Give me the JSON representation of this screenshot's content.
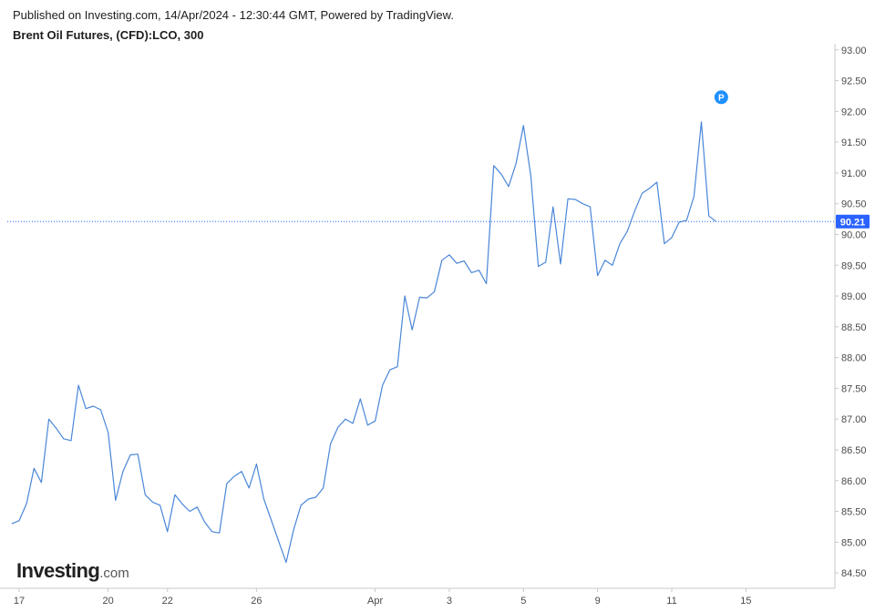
{
  "header": {
    "published": "Published on Investing.com, 14/Apr/2024 - 12:30:44 GMT, Powered by TradingView.",
    "instrument": "Brent Oil Futures, (CFD):LCO, 300"
  },
  "logo": {
    "brand": "Investing",
    "tld": ".com"
  },
  "colors": {
    "line": "#4a86d8",
    "last_price_line": "#2962ff",
    "last_price_badge": "#2962ff",
    "marker": "#1e90ff",
    "axis": "#c8c8c8"
  },
  "chart_data": {
    "type": "line",
    "title": "Brent Oil Futures, (CFD):LCO, 300",
    "xlabel": "",
    "ylabel": "",
    "grid": false,
    "ylim": [
      84.25,
      93.1
    ],
    "xlim": [
      -0.4,
      27.5
    ],
    "y_ticks": [
      "84.50",
      "85.00",
      "85.50",
      "86.00",
      "86.50",
      "87.00",
      "87.50",
      "88.00",
      "88.50",
      "89.00",
      "89.50",
      "90.00",
      "90.50",
      "91.00",
      "91.50",
      "92.00",
      "92.50",
      "93.00"
    ],
    "x_ticks": [
      {
        "t": 0,
        "label": "17"
      },
      {
        "t": 3,
        "label": "20"
      },
      {
        "t": 5,
        "label": "22"
      },
      {
        "t": 8,
        "label": "26"
      },
      {
        "t": 12,
        "label": "Apr"
      },
      {
        "t": 14.5,
        "label": "3"
      },
      {
        "t": 17,
        "label": "5"
      },
      {
        "t": 19.5,
        "label": "9"
      },
      {
        "t": 22,
        "label": "11"
      },
      {
        "t": 24.5,
        "label": "15"
      }
    ],
    "last_price": 90.21,
    "marker": {
      "t": 23.67,
      "y": 92.23,
      "label": "P"
    },
    "series": [
      {
        "points": [
          [
            -0.25,
            85.3
          ],
          [
            0.0,
            85.35
          ],
          [
            0.25,
            85.63
          ],
          [
            0.5,
            86.2
          ],
          [
            0.75,
            85.97
          ],
          [
            1.0,
            87.0
          ],
          [
            1.25,
            86.85
          ],
          [
            1.5,
            86.68
          ],
          [
            1.75,
            86.65
          ],
          [
            2.0,
            87.55
          ],
          [
            2.25,
            87.17
          ],
          [
            2.5,
            87.21
          ],
          [
            2.75,
            87.15
          ],
          [
            3.0,
            86.78
          ],
          [
            3.25,
            85.68
          ],
          [
            3.5,
            86.15
          ],
          [
            3.75,
            86.42
          ],
          [
            4.0,
            86.43
          ],
          [
            4.25,
            85.77
          ],
          [
            4.5,
            85.65
          ],
          [
            4.75,
            85.6
          ],
          [
            5.0,
            85.17
          ],
          [
            5.25,
            85.77
          ],
          [
            5.5,
            85.62
          ],
          [
            5.75,
            85.5
          ],
          [
            6.0,
            85.57
          ],
          [
            6.25,
            85.33
          ],
          [
            6.5,
            85.17
          ],
          [
            6.75,
            85.15
          ],
          [
            7.0,
            85.95
          ],
          [
            7.25,
            86.07
          ],
          [
            7.5,
            86.15
          ],
          [
            7.75,
            85.88
          ],
          [
            8.0,
            86.27
          ],
          [
            8.25,
            85.7
          ],
          [
            9.0,
            84.67
          ],
          [
            9.25,
            85.2
          ],
          [
            9.5,
            85.6
          ],
          [
            9.75,
            85.7
          ],
          [
            10.0,
            85.73
          ],
          [
            10.25,
            85.88
          ],
          [
            10.5,
            86.6
          ],
          [
            10.75,
            86.87
          ],
          [
            11.0,
            87.0
          ],
          [
            11.25,
            86.93
          ],
          [
            11.5,
            87.33
          ],
          [
            11.75,
            86.9
          ],
          [
            12.0,
            86.97
          ],
          [
            12.25,
            87.55
          ],
          [
            12.5,
            87.8
          ],
          [
            12.75,
            87.85
          ],
          [
            13.0,
            89.0
          ],
          [
            13.25,
            88.45
          ],
          [
            13.5,
            88.98
          ],
          [
            13.75,
            88.97
          ],
          [
            14.0,
            89.07
          ],
          [
            14.25,
            89.58
          ],
          [
            14.5,
            89.67
          ],
          [
            14.75,
            89.53
          ],
          [
            15.0,
            89.57
          ],
          [
            15.25,
            89.38
          ],
          [
            15.5,
            89.42
          ],
          [
            15.75,
            89.2
          ],
          [
            16.0,
            91.12
          ],
          [
            16.25,
            90.98
          ],
          [
            16.5,
            90.78
          ],
          [
            16.75,
            91.15
          ],
          [
            17.0,
            91.77
          ],
          [
            17.25,
            90.95
          ],
          [
            17.5,
            89.48
          ],
          [
            17.75,
            89.55
          ],
          [
            18.0,
            90.45
          ],
          [
            18.25,
            89.52
          ],
          [
            18.5,
            90.58
          ],
          [
            18.75,
            90.57
          ],
          [
            19.0,
            90.5
          ],
          [
            19.25,
            90.45
          ],
          [
            19.5,
            89.33
          ],
          [
            19.75,
            89.58
          ],
          [
            20.0,
            89.5
          ],
          [
            20.25,
            89.85
          ],
          [
            20.5,
            90.05
          ],
          [
            20.75,
            90.38
          ],
          [
            21.0,
            90.67
          ],
          [
            21.25,
            90.75
          ],
          [
            21.5,
            90.85
          ],
          [
            21.75,
            89.85
          ],
          [
            22.0,
            89.95
          ],
          [
            22.25,
            90.2
          ],
          [
            22.5,
            90.23
          ],
          [
            22.75,
            90.62
          ],
          [
            23.0,
            91.83
          ],
          [
            23.25,
            90.3
          ],
          [
            23.5,
            90.21
          ]
        ]
      }
    ]
  }
}
